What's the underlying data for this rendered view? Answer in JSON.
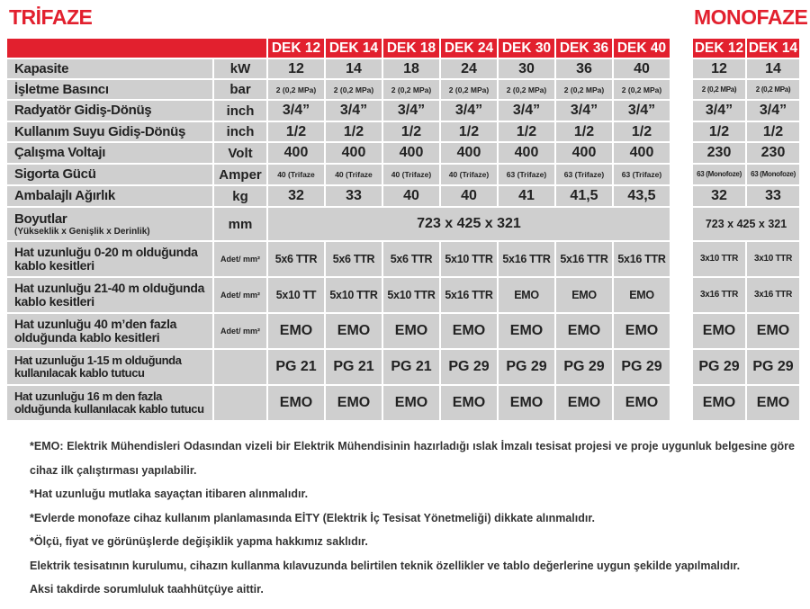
{
  "titles": {
    "trifaze": "TRİFAZE",
    "monofaze": "MONOFAZE"
  },
  "colors": {
    "accent": "#e2202e",
    "cell": "#cfcfcf"
  },
  "models_trifaze": [
    "DEK 12",
    "DEK 14",
    "DEK 18",
    "DEK 24",
    "DEK 30",
    "DEK 36",
    "DEK 40"
  ],
  "models_monofaze": [
    "DEK 12",
    "DEK 14"
  ],
  "rows": [
    {
      "label": "Kapasite",
      "unit": "kW",
      "tri": [
        "12",
        "14",
        "18",
        "24",
        "30",
        "36",
        "40"
      ],
      "mono": [
        "12",
        "14"
      ]
    },
    {
      "label": "İşletme Basıncı",
      "unit": "bar",
      "tri": [
        "2 (0,2 MPa)",
        "2 (0,2 MPa)",
        "2 (0,2 MPa)",
        "2 (0,2 MPa)",
        "2 (0,2 MPa)",
        "2 (0,2 MPa)",
        "2 (0,2 MPa)"
      ],
      "mono": [
        "2 (0,2 MPa)",
        "2 (0,2 MPa)"
      ]
    },
    {
      "label": "Radyatör Gidiş-Dönüş",
      "unit": "inch",
      "tri": [
        "3/4”",
        "3/4”",
        "3/4”",
        "3/4”",
        "3/4”",
        "3/4”",
        "3/4”"
      ],
      "mono": [
        "3/4”",
        "3/4”"
      ]
    },
    {
      "label": "Kullanım Suyu Gidiş-Dönüş",
      "unit": "inch",
      "tri": [
        "1/2",
        "1/2",
        "1/2",
        "1/2",
        "1/2",
        "1/2",
        "1/2"
      ],
      "mono": [
        "1/2",
        "1/2"
      ]
    },
    {
      "label": "Çalışma Voltajı",
      "unit": "Volt",
      "tri": [
        "400",
        "400",
        "400",
        "400",
        "400",
        "400",
        "400"
      ],
      "mono": [
        "230",
        "230"
      ]
    },
    {
      "label": "Sigorta Gücü",
      "unit": "Amper",
      "tri": [
        "40 (Trifaze",
        "40 (Trifaze",
        "40 (Trifaze)",
        "40 (Trifaze)",
        "63 (Trifaze)",
        "63 (Trifaze)",
        "63 (Trifaze)"
      ],
      "mono": [
        "63 (Monofoze)",
        "63 (Monofoze)"
      ]
    },
    {
      "label": "Ambalajlı Ağırlık",
      "unit": "kg",
      "tri": [
        "32",
        "33",
        "40",
        "40",
        "41",
        "41,5",
        "43,5"
      ],
      "mono": [
        "32",
        "33"
      ]
    },
    {
      "label": "Boyutlar",
      "sublabel": "(Yükseklik x Genişlik x Derinlik)",
      "unit": "mm",
      "tri_merged": "723 x 425 x 321",
      "mono_merged": "723 x 425 x 321"
    },
    {
      "label": "Hat uzunluğu 0-20 m olduğunda kablo kesitleri",
      "unit": "Adet/ mm²",
      "tri": [
        "5x6 TTR",
        "5x6 TTR",
        "5x6 TTR",
        "5x10 TTR",
        "5x16 TTR",
        "5x16 TTR",
        "5x16 TTR"
      ],
      "mono": [
        "3x10 TTR",
        "3x10 TTR"
      ]
    },
    {
      "label": "Hat uzunluğu 21-40 m olduğunda kablo kesitleri",
      "unit": "Adet/ mm²",
      "tri": [
        "5x10 TT",
        "5x10 TTR",
        "5x10 TTR",
        "5x16 TTR",
        "EMO",
        "EMO",
        "EMO"
      ],
      "mono": [
        "3x16 TTR",
        "3x16 TTR"
      ]
    },
    {
      "label": "Hat uzunluğu 40 m’den fazla olduğunda kablo kesitleri",
      "unit": "Adet/ mm²",
      "tri": [
        "EMO",
        "EMO",
        "EMO",
        "EMO",
        "EMO",
        "EMO",
        "EMO"
      ],
      "mono": [
        "EMO",
        "EMO"
      ]
    },
    {
      "label": "Hat uzunluğu 1-15 m olduğunda kullanılacak kablo tutucu",
      "unit": "",
      "tri": [
        "PG 21",
        "PG 21",
        "PG 21",
        "PG 29",
        "PG 29",
        "PG 29",
        "PG 29"
      ],
      "mono": [
        "PG 29",
        "PG 29"
      ]
    },
    {
      "label": "Hat uzunluğu 16 m den fazla olduğunda kullanılacak kablo tutucu",
      "unit": "",
      "tri": [
        "EMO",
        "EMO",
        "EMO",
        "EMO",
        "EMO",
        "EMO",
        "EMO"
      ],
      "mono": [
        "EMO",
        "EMO"
      ]
    }
  ],
  "notes": [
    "*EMO: Elektrik Mühendisleri Odasından vizeli bir Elektrik Mühendisinin hazırladığı ıslak İmzalı tesisat projesi ve proje uygunluk belgesine göre cihaz ilk çalıştırması yapılabilir.",
    "*Hat uzunluğu mutlaka sayaçtan itibaren alınmalıdır.",
    "*Evlerde monofaze cihaz kullanım planlamasında EİTY (Elektrik İç Tesisat Yönetmeliği) dikkate alınmalıdır.",
    "*Ölçü, fiyat ve görünüşlerde değişiklik yapma hakkımız saklıdır.",
    "Elektrik tesisatının kurulumu, cihazın kullanma kılavuzunda belirtilen teknik özellikler ve tablo değerlerine uygun şekilde yapılmalıdır.",
    "Aksi takdirde sorumluluk taahhütçüye aittir."
  ]
}
